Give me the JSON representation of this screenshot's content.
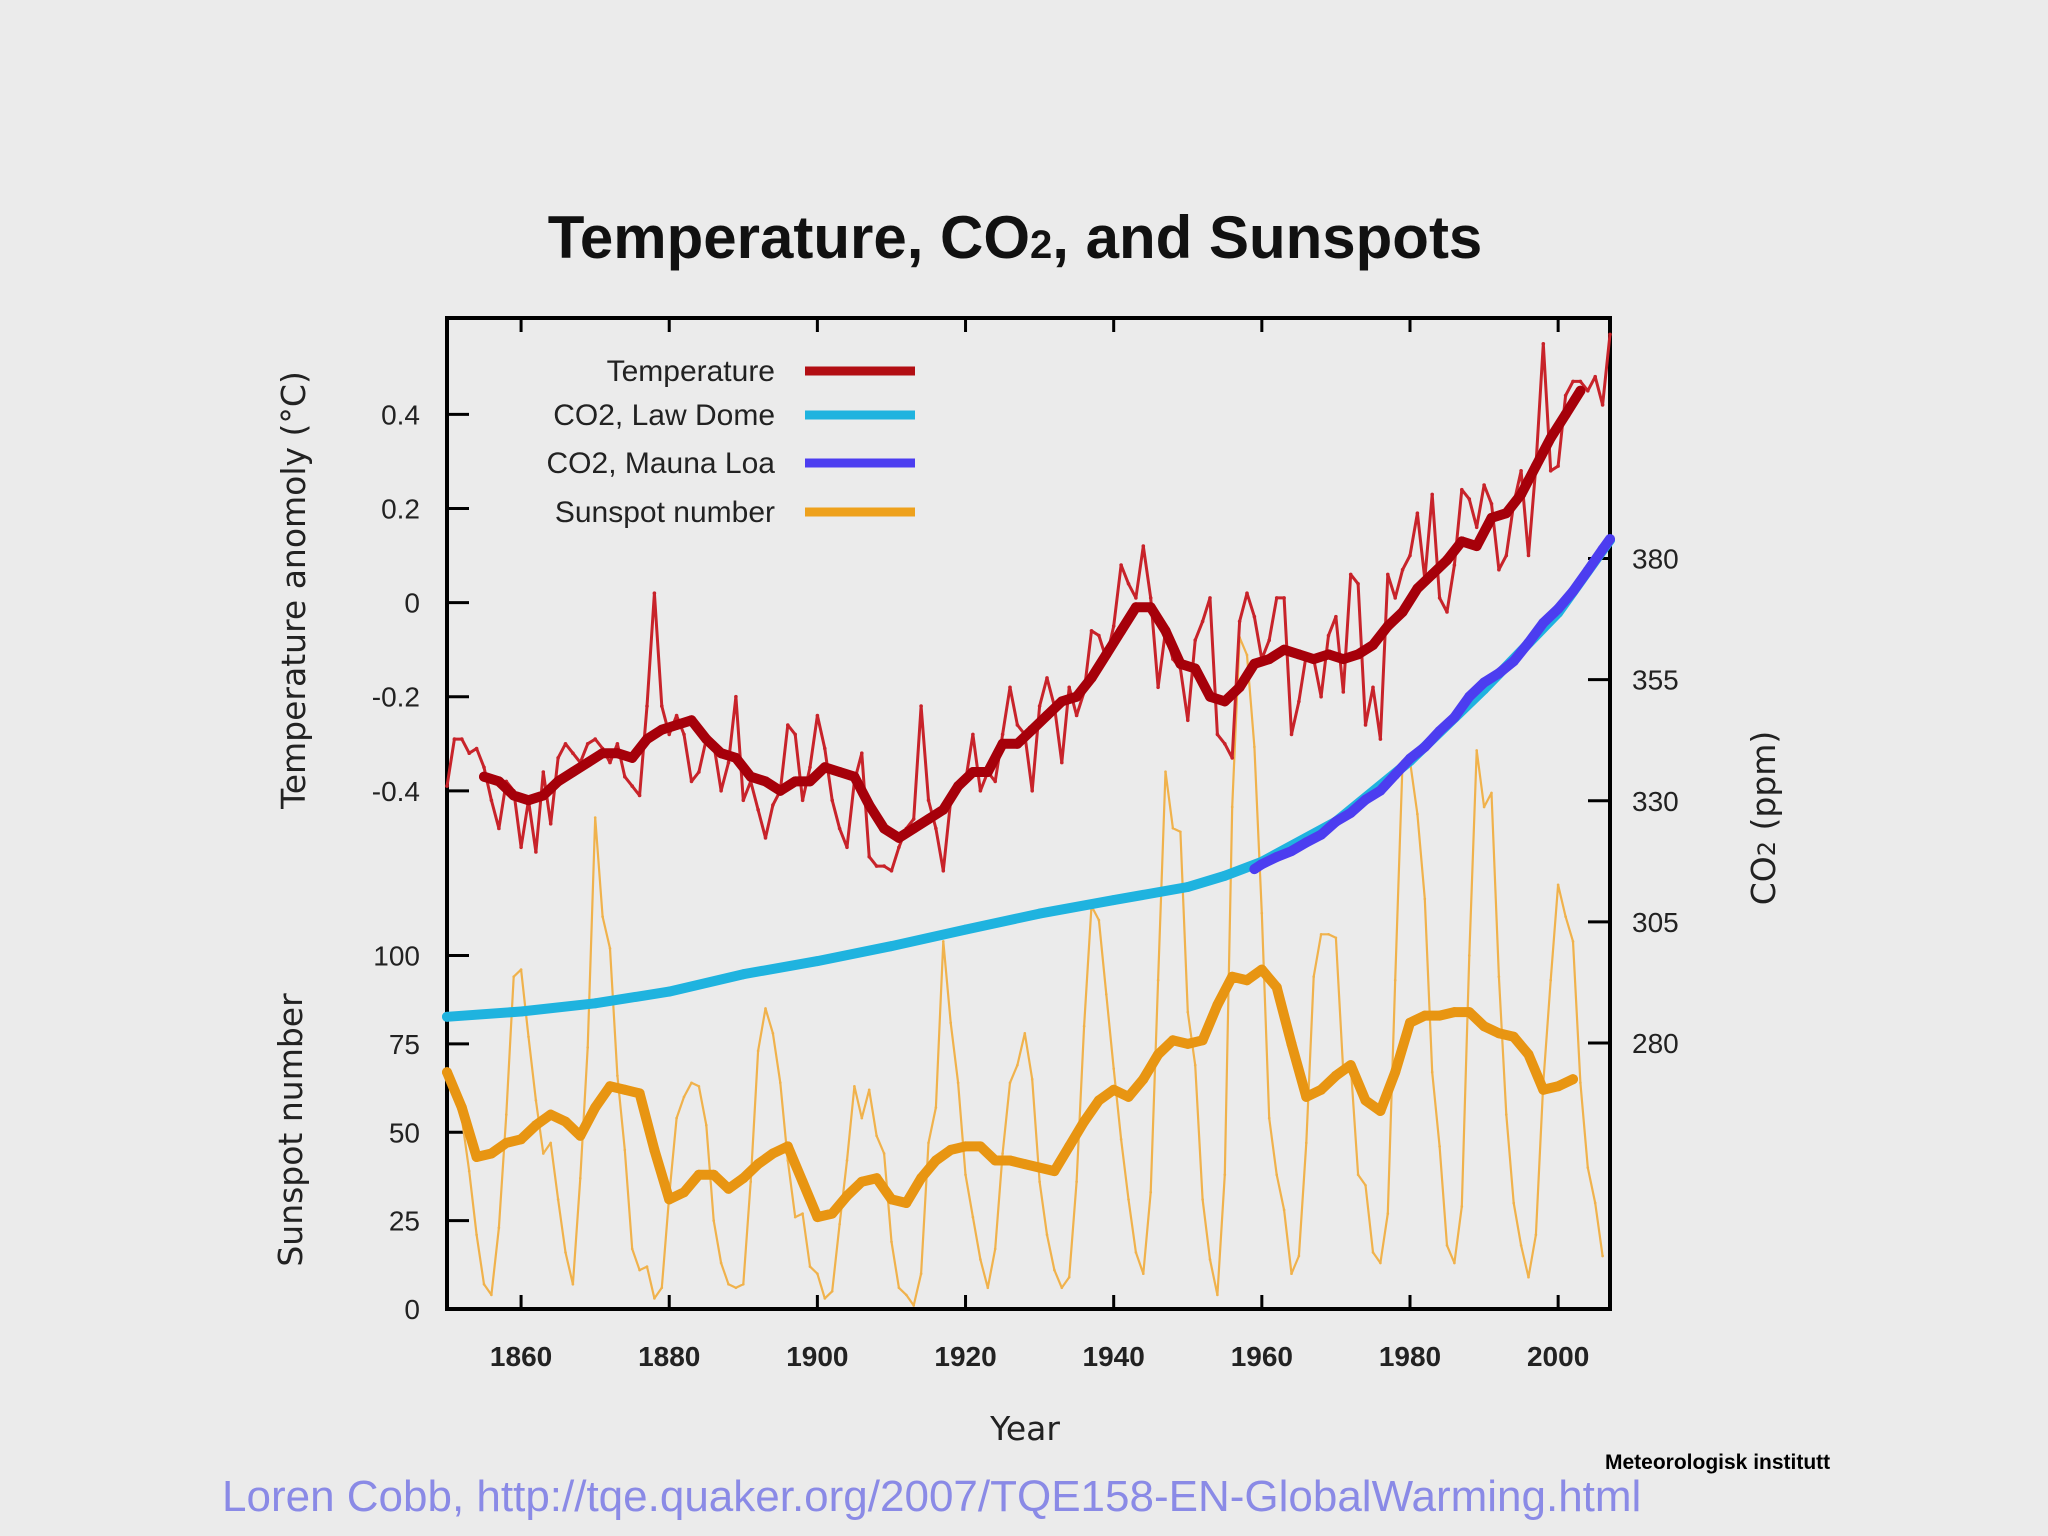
{
  "chart_data": {
    "type": "line",
    "title": "Temperature, CO₂, and Sunspots",
    "xlabel": "Year",
    "ylabel_temperature": "Temperature anomoly (°C)",
    "ylabel_sunspot": "Sunspot number",
    "ylabel_co2": "CO₂ (ppm)",
    "xlim": [
      1850,
      2007
    ],
    "x_ticks": [
      "1860",
      "1880",
      "1900",
      "1920",
      "1940",
      "1960",
      "1980",
      "2000"
    ],
    "temperature_ticks": [
      "0.4",
      "0.2",
      "0",
      "-0.2",
      "-0.4"
    ],
    "sunspot_ticks": [
      "100",
      "75",
      "50",
      "25",
      "0"
    ],
    "co2_ticks": [
      "380",
      "355",
      "330",
      "305",
      "280"
    ],
    "legend_position": "top-left",
    "grid": false,
    "legend": [
      {
        "label": "Temperature",
        "color": "#b20e13"
      },
      {
        "label": "CO2, Law Dome",
        "color": "#1fb3df"
      },
      {
        "label": "CO2, Mauna Loa",
        "color": "#4c3df0"
      },
      {
        "label": "Sunspot number",
        "color": "#eea11c"
      }
    ],
    "series": [
      {
        "name": "Temperature",
        "kind": "annual",
        "axis": "temperature",
        "color": "#c8232a",
        "x": [
          1850,
          1851,
          1852,
          1853,
          1854,
          1855,
          1856,
          1857,
          1858,
          1859,
          1860,
          1861,
          1862,
          1863,
          1864,
          1865,
          1866,
          1867,
          1868,
          1869,
          1870,
          1871,
          1872,
          1873,
          1874,
          1875,
          1876,
          1877,
          1878,
          1879,
          1880,
          1881,
          1882,
          1883,
          1884,
          1885,
          1886,
          1887,
          1888,
          1889,
          1890,
          1891,
          1892,
          1893,
          1894,
          1895,
          1896,
          1897,
          1898,
          1899,
          1900,
          1901,
          1902,
          1903,
          1904,
          1905,
          1906,
          1907,
          1908,
          1909,
          1910,
          1911,
          1912,
          1913,
          1914,
          1915,
          1916,
          1917,
          1918,
          1919,
          1920,
          1921,
          1922,
          1923,
          1924,
          1925,
          1926,
          1927,
          1928,
          1929,
          1930,
          1931,
          1932,
          1933,
          1934,
          1935,
          1936,
          1937,
          1938,
          1939,
          1940,
          1941,
          1942,
          1943,
          1944,
          1945,
          1946,
          1947,
          1948,
          1949,
          1950,
          1951,
          1952,
          1953,
          1954,
          1955,
          1956,
          1957,
          1958,
          1959,
          1960,
          1961,
          1962,
          1963,
          1964,
          1965,
          1966,
          1967,
          1968,
          1969,
          1970,
          1971,
          1972,
          1973,
          1974,
          1975,
          1976,
          1977,
          1978,
          1979,
          1980,
          1981,
          1982,
          1983,
          1984,
          1985,
          1986,
          1987,
          1988,
          1989,
          1990,
          1991,
          1992,
          1993,
          1994,
          1995,
          1996,
          1997,
          1998,
          1999,
          2000,
          2001,
          2002,
          2003,
          2004,
          2005,
          2006,
          2007
        ],
        "values": [
          -0.39,
          -0.29,
          -0.29,
          -0.32,
          -0.31,
          -0.35,
          -0.42,
          -0.48,
          -0.38,
          -0.4,
          -0.52,
          -0.42,
          -0.53,
          -0.36,
          -0.47,
          -0.33,
          -0.3,
          -0.32,
          -0.34,
          -0.3,
          -0.29,
          -0.31,
          -0.34,
          -0.3,
          -0.37,
          -0.39,
          -0.41,
          -0.22,
          0.02,
          -0.22,
          -0.28,
          -0.24,
          -0.28,
          -0.38,
          -0.36,
          -0.29,
          -0.3,
          -0.4,
          -0.34,
          -0.2,
          -0.42,
          -0.38,
          -0.44,
          -0.5,
          -0.43,
          -0.4,
          -0.26,
          -0.28,
          -0.42,
          -0.35,
          -0.24,
          -0.31,
          -0.42,
          -0.48,
          -0.52,
          -0.38,
          -0.32,
          -0.54,
          -0.56,
          -0.56,
          -0.57,
          -0.52,
          -0.48,
          -0.46,
          -0.22,
          -0.42,
          -0.48,
          -0.57,
          -0.42,
          -0.4,
          -0.38,
          -0.28,
          -0.4,
          -0.36,
          -0.38,
          -0.28,
          -0.18,
          -0.26,
          -0.28,
          -0.4,
          -0.22,
          -0.16,
          -0.22,
          -0.34,
          -0.18,
          -0.24,
          -0.19,
          -0.06,
          -0.07,
          -0.12,
          -0.05,
          0.08,
          0.04,
          0.01,
          0.12,
          0.01,
          -0.18,
          -0.06,
          -0.12,
          -0.14,
          -0.25,
          -0.08,
          -0.04,
          0.01,
          -0.28,
          -0.3,
          -0.33,
          -0.04,
          0.02,
          -0.03,
          -0.12,
          -0.08,
          0.01,
          0.01,
          -0.28,
          -0.21,
          -0.11,
          -0.12,
          -0.2,
          -0.07,
          -0.03,
          -0.19,
          0.06,
          0.04,
          -0.26,
          -0.18,
          -0.29,
          0.06,
          0.01,
          0.07,
          0.1,
          0.19,
          0.05,
          0.23,
          0.01,
          -0.02,
          0.08,
          0.24,
          0.22,
          0.16,
          0.25,
          0.21,
          0.07,
          0.1,
          0.21,
          0.28,
          0.1,
          0.29,
          0.55,
          0.28,
          0.29,
          0.44,
          0.47,
          0.47,
          0.45,
          0.48,
          0.42,
          0.57
        ]
      },
      {
        "name": "Temperature",
        "kind": "smoothed",
        "axis": "temperature",
        "color": "#a6000a",
        "x": [
          1855,
          1857,
          1859,
          1861,
          1863,
          1865,
          1867,
          1869,
          1871,
          1873,
          1875,
          1877,
          1879,
          1881,
          1883,
          1885,
          1887,
          1889,
          1891,
          1893,
          1895,
          1897,
          1899,
          1901,
          1903,
          1905,
          1907,
          1909,
          1911,
          1913,
          1915,
          1917,
          1919,
          1921,
          1923,
          1925,
          1927,
          1929,
          1931,
          1933,
          1935,
          1937,
          1939,
          1941,
          1943,
          1945,
          1947,
          1949,
          1951,
          1953,
          1955,
          1957,
          1959,
          1961,
          1963,
          1965,
          1967,
          1969,
          1971,
          1973,
          1975,
          1977,
          1979,
          1981,
          1983,
          1985,
          1987,
          1989,
          1991,
          1993,
          1995,
          1997,
          1999,
          2001,
          2003
        ],
        "values": [
          -0.37,
          -0.38,
          -0.41,
          -0.42,
          -0.41,
          -0.38,
          -0.36,
          -0.34,
          -0.32,
          -0.32,
          -0.33,
          -0.29,
          -0.27,
          -0.26,
          -0.25,
          -0.29,
          -0.32,
          -0.33,
          -0.37,
          -0.38,
          -0.4,
          -0.38,
          -0.38,
          -0.35,
          -0.36,
          -0.37,
          -0.43,
          -0.48,
          -0.5,
          -0.48,
          -0.46,
          -0.44,
          -0.39,
          -0.36,
          -0.36,
          -0.3,
          -0.3,
          -0.27,
          -0.24,
          -0.21,
          -0.2,
          -0.16,
          -0.11,
          -0.06,
          -0.01,
          -0.01,
          -0.06,
          -0.13,
          -0.14,
          -0.2,
          -0.21,
          -0.18,
          -0.13,
          -0.12,
          -0.1,
          -0.11,
          -0.12,
          -0.11,
          -0.12,
          -0.11,
          -0.09,
          -0.05,
          -0.02,
          0.03,
          0.06,
          0.09,
          0.13,
          0.12,
          0.18,
          0.19,
          0.23,
          0.29,
          0.35,
          0.4,
          0.45
        ]
      },
      {
        "name": "CO2, Law Dome",
        "axis": "co2",
        "color": "#1fb3df",
        "x": [
          1850,
          1860,
          1870,
          1880,
          1890,
          1900,
          1910,
          1920,
          1930,
          1940,
          1950,
          1955,
          1960,
          1970,
          1980,
          1990,
          2000,
          2007
        ],
        "values": [
          285.4,
          286.5,
          288.2,
          290.6,
          294.2,
          296.9,
          300.0,
          303.4,
          306.7,
          309.5,
          312.2,
          314.5,
          317.4,
          325.7,
          338.2,
          353.0,
          368.8,
          383.8
        ]
      },
      {
        "name": "CO2, Mauna Loa",
        "axis": "co2",
        "color": "#4c3df0",
        "x": [
          1959,
          1960,
          1962,
          1964,
          1966,
          1968,
          1970,
          1972,
          1974,
          1976,
          1978,
          1980,
          1982,
          1984,
          1986,
          1988,
          1990,
          1992,
          1994,
          1996,
          1998,
          2000,
          2002,
          2004,
          2006,
          2007
        ],
        "values": [
          315.9,
          316.9,
          318.4,
          319.6,
          321.4,
          323.0,
          325.7,
          327.5,
          330.2,
          332.1,
          335.4,
          338.7,
          341.1,
          344.4,
          347.2,
          351.5,
          354.4,
          356.3,
          358.8,
          362.6,
          366.7,
          369.6,
          373.2,
          377.5,
          381.9,
          384.0
        ]
      },
      {
        "name": "Sunspot number",
        "kind": "annual",
        "axis": "sunspot",
        "color": "#f0b24c",
        "x": [
          1850,
          1851,
          1852,
          1853,
          1854,
          1855,
          1856,
          1857,
          1858,
          1859,
          1860,
          1861,
          1862,
          1863,
          1864,
          1865,
          1866,
          1867,
          1868,
          1869,
          1870,
          1871,
          1872,
          1873,
          1874,
          1875,
          1876,
          1877,
          1878,
          1879,
          1880,
          1881,
          1882,
          1883,
          1884,
          1885,
          1886,
          1887,
          1888,
          1889,
          1890,
          1891,
          1892,
          1893,
          1894,
          1895,
          1896,
          1897,
          1898,
          1899,
          1900,
          1901,
          1902,
          1903,
          1904,
          1905,
          1906,
          1907,
          1908,
          1909,
          1910,
          1911,
          1912,
          1913,
          1914,
          1915,
          1916,
          1917,
          1918,
          1919,
          1920,
          1921,
          1922,
          1923,
          1924,
          1925,
          1926,
          1927,
          1928,
          1929,
          1930,
          1931,
          1932,
          1933,
          1934,
          1935,
          1936,
          1937,
          1938,
          1939,
          1940,
          1941,
          1942,
          1943,
          1944,
          1945,
          1946,
          1947,
          1948,
          1949,
          1950,
          1951,
          1952,
          1953,
          1954,
          1955,
          1956,
          1957,
          1958,
          1959,
          1960,
          1961,
          1962,
          1963,
          1964,
          1965,
          1966,
          1967,
          1968,
          1969,
          1970,
          1971,
          1972,
          1973,
          1974,
          1975,
          1976,
          1977,
          1978,
          1979,
          1980,
          1981,
          1982,
          1983,
          1984,
          1985,
          1986,
          1987,
          1988,
          1989,
          1990,
          1991,
          1992,
          1993,
          1994,
          1995,
          1996,
          1997,
          1998,
          1999,
          2000,
          2001,
          2002,
          2003,
          2004,
          2005,
          2006
        ],
        "values": [
          66,
          64,
          54,
          39,
          21,
          7,
          4,
          23,
          55,
          94,
          96,
          77,
          59,
          44,
          47,
          31,
          16,
          7,
          37,
          74,
          139,
          111,
          102,
          66,
          45,
          17,
          11,
          12,
          3,
          6,
          32,
          54,
          60,
          64,
          63,
          52,
          25,
          13,
          7,
          6,
          7,
          36,
          73,
          85,
          78,
          64,
          42,
          26,
          27,
          12,
          10,
          3,
          5,
          24,
          42,
          63,
          54,
          62,
          49,
          44,
          19,
          6,
          4,
          1,
          10,
          47,
          57,
          104,
          81,
          64,
          38,
          26,
          14,
          6,
          17,
          44,
          64,
          69,
          78,
          65,
          36,
          21,
          11,
          6,
          9,
          36,
          80,
          114,
          110,
          89,
          68,
          48,
          31,
          16,
          10,
          33,
          93,
          152,
          136,
          135,
          84,
          69,
          31,
          14,
          4,
          38,
          142,
          190,
          185,
          159,
          112,
          54,
          38,
          28,
          10,
          15,
          47,
          94,
          106,
          106,
          105,
          67,
          69,
          38,
          35,
          16,
          13,
          27,
          93,
          155,
          155,
          140,
          116,
          67,
          46,
          18,
          13,
          29,
          100,
          158,
          142,
          146,
          94,
          55,
          30,
          18,
          9,
          21,
          64,
          93,
          120,
          111,
          104,
          64,
          40,
          30,
          15
        ]
      },
      {
        "name": "Sunspot number",
        "kind": "smoothed",
        "axis": "sunspot",
        "color": "#e89512",
        "x": [
          1850,
          1852,
          1854,
          1856,
          1858,
          1860,
          1862,
          1864,
          1866,
          1868,
          1870,
          1872,
          1874,
          1876,
          1878,
          1880,
          1882,
          1884,
          1886,
          1888,
          1890,
          1892,
          1894,
          1896,
          1898,
          1900,
          1902,
          1904,
          1906,
          1908,
          1910,
          1912,
          1914,
          1916,
          1918,
          1920,
          1922,
          1924,
          1926,
          1928,
          1930,
          1932,
          1934,
          1936,
          1938,
          1940,
          1942,
          1944,
          1946,
          1948,
          1950,
          1952,
          1954,
          1956,
          1958,
          1960,
          1962,
          1964,
          1966,
          1968,
          1970,
          1972,
          1974,
          1976,
          1978,
          1980,
          1982,
          1984,
          1986,
          1988,
          1990,
          1992,
          1994,
          1996,
          1998,
          2000,
          2002
        ],
        "values": [
          67,
          57,
          43,
          44,
          47,
          48,
          52,
          55,
          53,
          49,
          57,
          63,
          62,
          61,
          45,
          31,
          33,
          38,
          38,
          34,
          37,
          41,
          44,
          46,
          36,
          26,
          27,
          32,
          36,
          37,
          31,
          30,
          37,
          42,
          45,
          46,
          46,
          42,
          42,
          41,
          40,
          39,
          46,
          53,
          59,
          62,
          60,
          65,
          72,
          76,
          75,
          76,
          86,
          94,
          93,
          96,
          91,
          75,
          60,
          62,
          66,
          69,
          59,
          56,
          67,
          81,
          83,
          83,
          84,
          84,
          80,
          78,
          77,
          72,
          62,
          63,
          65
        ]
      }
    ]
  },
  "footer": {
    "credit": "Loren Cobb, http://tqe.quaker.org/2007/TQE158-EN-GlobalWarming.html",
    "organization": "Meteorologisk institutt"
  }
}
